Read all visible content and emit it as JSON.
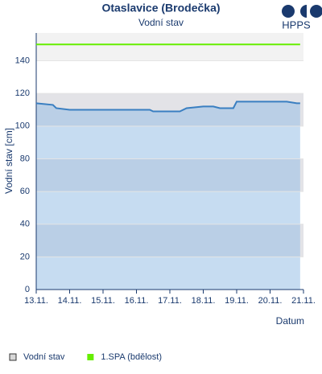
{
  "chart_data": {
    "type": "line",
    "title": "Otaslavice (Brodečka)",
    "subtitle": "Vodní stav",
    "logo": "HPPS",
    "y_label": "Vodní stav [cm]",
    "x_label": "Datum",
    "xlim": [
      13,
      21
    ],
    "xticks": [
      {
        "value": 13,
        "label": "13.11."
      },
      {
        "value": 14,
        "label": "14.11."
      },
      {
        "value": 15,
        "label": "15.11."
      },
      {
        "value": 16,
        "label": "16.11."
      },
      {
        "value": 17,
        "label": "17.11."
      },
      {
        "value": 18,
        "label": "18.11."
      },
      {
        "value": 19,
        "label": "19.11."
      },
      {
        "value": 20,
        "label": "20.11."
      },
      {
        "value": 21,
        "label": "21.11."
      }
    ],
    "ylim": [
      0,
      157
    ],
    "yticks": [
      0,
      20,
      40,
      60,
      80,
      100,
      120,
      140
    ],
    "grid": true,
    "series": [
      {
        "name": "Vodní stav",
        "color": "#3a7fc1",
        "fill": "#c6dcf1",
        "x": [
          13,
          13.5,
          13.6,
          14.0,
          14.5,
          15,
          15.5,
          16,
          16.4,
          16.5,
          17.0,
          17.3,
          17.5,
          18.0,
          18.3,
          18.5,
          18.9,
          19.0,
          19.5,
          20.0,
          20.5,
          20.8,
          20.9
        ],
        "values": [
          114,
          113,
          111,
          110,
          110,
          110,
          110,
          110,
          110,
          109,
          109,
          109,
          111,
          112,
          112,
          111,
          111,
          115,
          115,
          115,
          115,
          114,
          114
        ]
      },
      {
        "name": "1.SPA (bdělost)",
        "color": "#66ee00",
        "x": [
          13,
          20.9
        ],
        "values": [
          150,
          150
        ]
      }
    ]
  }
}
